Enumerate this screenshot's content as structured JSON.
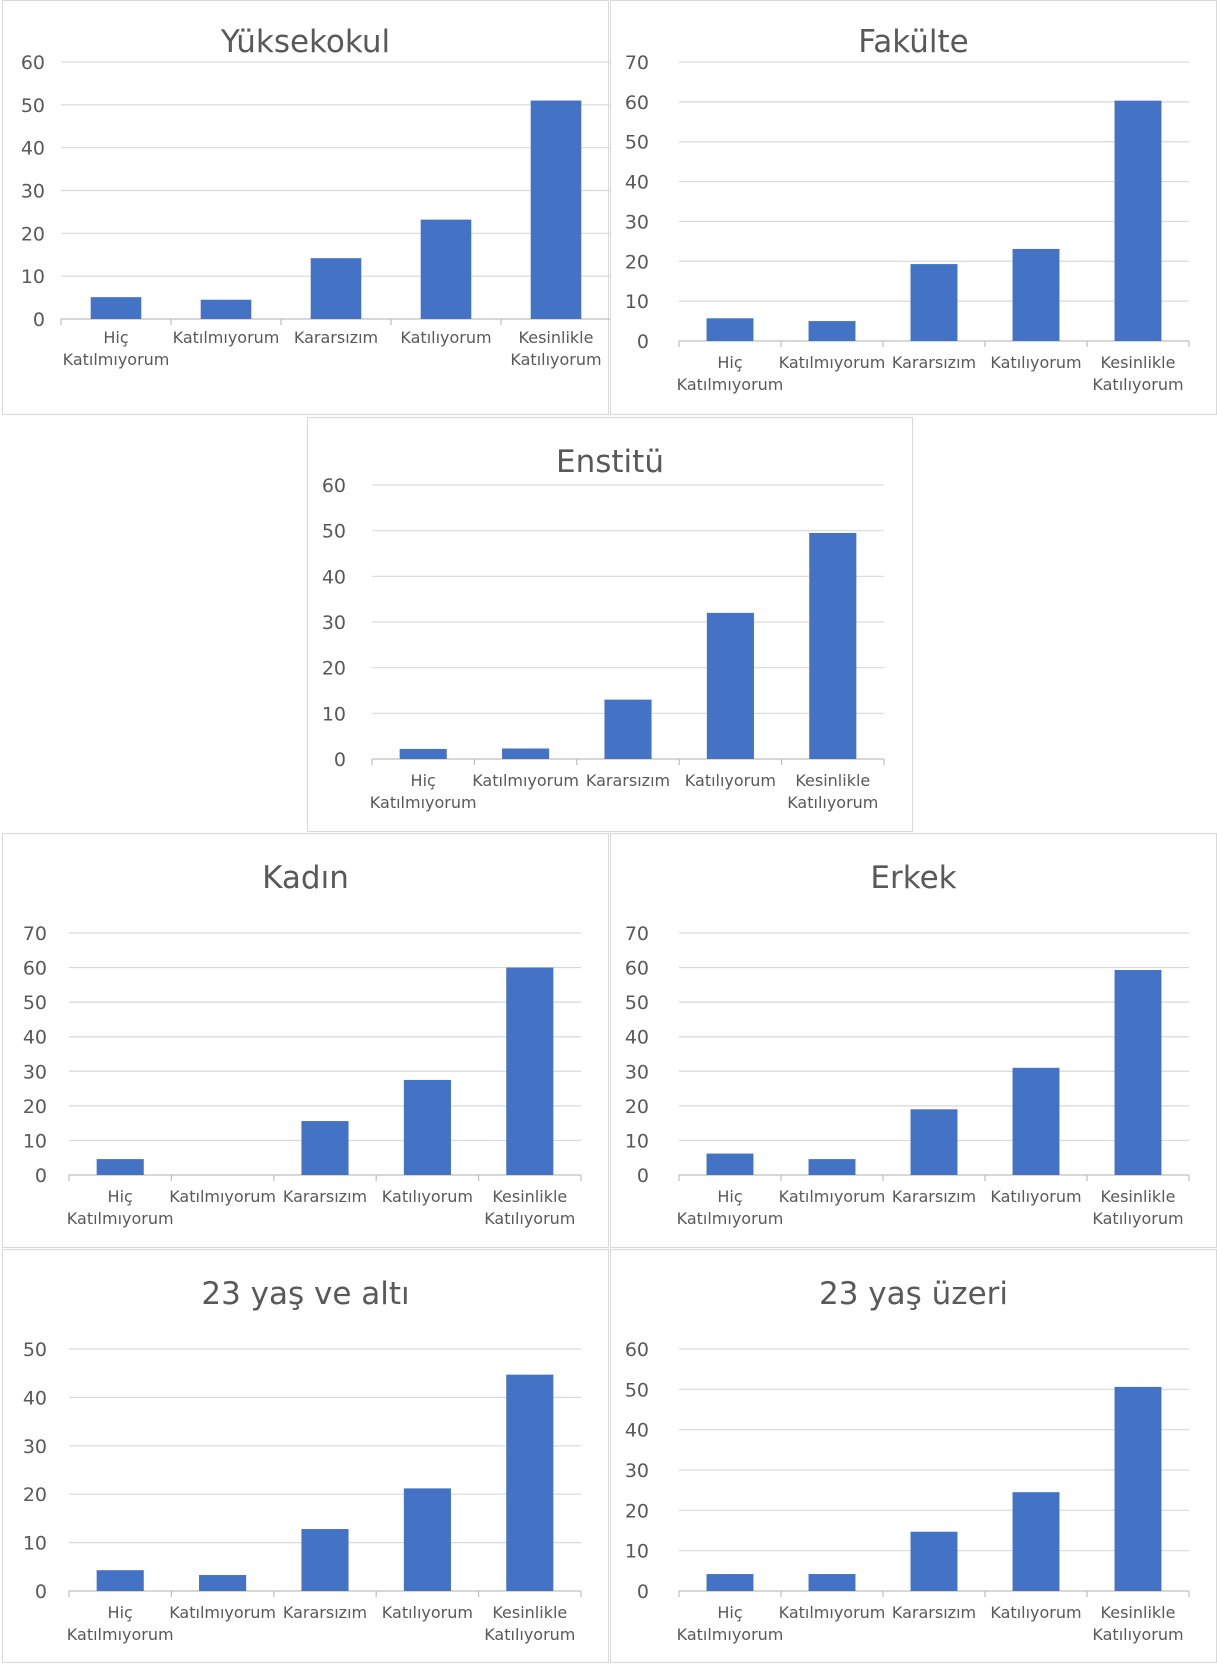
{
  "colors": {
    "bar": "#4472c4",
    "grid": "#d9d9d9",
    "text": "#595959"
  },
  "chart_data": [
    {
      "type": "bar",
      "title": "Yüksekokul",
      "categories": [
        [
          "Hiç",
          "Katılmıyorum"
        ],
        [
          "Katılmıyorum"
        ],
        [
          "Kararsızım"
        ],
        [
          "Katılıyorum"
        ],
        [
          "Kesinlikle",
          "Katılıyorum"
        ]
      ],
      "values": [
        5.1,
        4.5,
        14.2,
        23.2,
        51.0
      ],
      "ylim": [
        0,
        60
      ],
      "yticks": [
        "0",
        "10",
        "20",
        "30",
        "40",
        "50",
        "60"
      ],
      "grid": true,
      "legend": "none"
    },
    {
      "type": "bar",
      "title": "Fakülte",
      "categories": [
        [
          "Hiç",
          "Katılmıyorum"
        ],
        [
          "Katılmıyorum"
        ],
        [
          "Kararsızım"
        ],
        [
          "Katılıyorum"
        ],
        [
          "Kesinlikle",
          "Katılıyorum"
        ]
      ],
      "values": [
        5.7,
        5.0,
        19.3,
        23.1,
        60.3
      ],
      "ylim": [
        0,
        70
      ],
      "yticks": [
        "0",
        "10",
        "20",
        "30",
        "40",
        "50",
        "60",
        "70"
      ],
      "grid": true,
      "legend": "none"
    },
    {
      "type": "bar",
      "title": "Enstitü",
      "categories": [
        [
          "Hiç",
          "Katılmıyorum"
        ],
        [
          "Katılmıyorum"
        ],
        [
          "Kararsızım"
        ],
        [
          "Katılıyorum"
        ],
        [
          "Kesinlikle",
          "Katılıyorum"
        ]
      ],
      "values": [
        2.2,
        2.3,
        13.0,
        32.0,
        49.5
      ],
      "ylim": [
        0,
        60
      ],
      "yticks": [
        "0",
        "10",
        "20",
        "30",
        "40",
        "50",
        "60"
      ],
      "grid": true,
      "legend": "none"
    },
    {
      "type": "bar",
      "title": "Kadın",
      "categories": [
        [
          "Hiç",
          "Katılmıyorum"
        ],
        [
          "Katılmıyorum"
        ],
        [
          "Kararsızım"
        ],
        [
          "Katılıyorum"
        ],
        [
          "Kesinlikle",
          "Katılıyorum"
        ]
      ],
      "values": [
        4.6,
        0,
        15.6,
        27.5,
        60.0
      ],
      "ylim": [
        0,
        70
      ],
      "yticks": [
        "0",
        "10",
        "20",
        "30",
        "40",
        "50",
        "60",
        "70"
      ],
      "grid": true,
      "legend": "none"
    },
    {
      "type": "bar",
      "title": "Erkek",
      "categories": [
        [
          "Hiç",
          "Katılmıyorum"
        ],
        [
          "Katılmıyorum"
        ],
        [
          "Kararsızım"
        ],
        [
          "Katılıyorum"
        ],
        [
          "Kesinlikle",
          "Katılıyorum"
        ]
      ],
      "values": [
        6.2,
        4.6,
        19.0,
        31.0,
        59.3
      ],
      "ylim": [
        0,
        70
      ],
      "yticks": [
        "0",
        "10",
        "20",
        "30",
        "40",
        "50",
        "60",
        "70"
      ],
      "grid": true,
      "legend": "none"
    },
    {
      "type": "bar",
      "title": "23 yaş ve altı",
      "categories": [
        [
          "Hiç",
          "Katılmıyorum"
        ],
        [
          "Katılmıyorum"
        ],
        [
          "Kararsızım"
        ],
        [
          "Katılıyorum"
        ],
        [
          "Kesinlikle",
          "Katılıyorum"
        ]
      ],
      "values": [
        4.3,
        3.3,
        12.8,
        21.2,
        44.7
      ],
      "ylim": [
        0,
        50
      ],
      "yticks": [
        "0",
        "10",
        "20",
        "30",
        "40",
        "50"
      ],
      "grid": true,
      "legend": "none"
    },
    {
      "type": "bar",
      "title": "23 yaş üzeri",
      "categories": [
        [
          "Hiç",
          "Katılmıyorum"
        ],
        [
          "Katılmıyorum"
        ],
        [
          "Kararsızım"
        ],
        [
          "Katılıyorum"
        ],
        [
          "Kesinlikle",
          "Katılıyorum"
        ]
      ],
      "values": [
        4.2,
        4.2,
        14.7,
        24.5,
        50.6
      ],
      "ylim": [
        0,
        60
      ],
      "yticks": [
        "0",
        "10",
        "20",
        "30",
        "40",
        "50",
        "60"
      ],
      "grid": true,
      "legend": "none"
    }
  ]
}
